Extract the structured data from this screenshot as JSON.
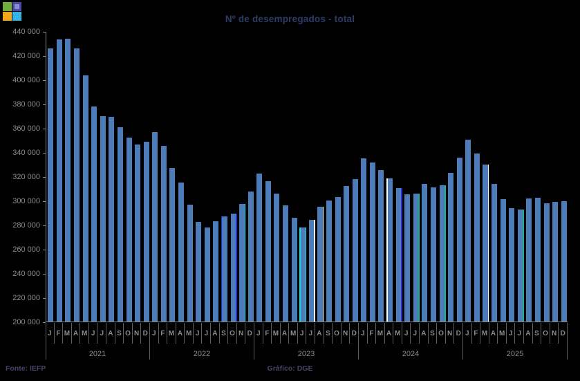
{
  "header": {
    "title": "Nº de desempregados - total",
    "logo_squares": [
      "green",
      "purple",
      "orange",
      "cyan"
    ]
  },
  "footer": {
    "source": "Fonte: IEFP",
    "credit": "Gráfico: DGE"
  },
  "colors": {
    "background": "#000000",
    "bar": "#4e7cb8",
    "axis": "#8a8a8a",
    "separator": "#5f5f5f",
    "tick_label": "#8c8c8c",
    "title": "#2e3d66",
    "footer_text": "#45456b",
    "stripe_blue": "#2433d6",
    "stripe_cyan": "#00e1e8",
    "stripe_white": "#ffffff",
    "stripe_teal": "#19b394"
  },
  "chart_data": {
    "type": "bar",
    "title": "Nº de desempregados - total",
    "xlabel": "",
    "ylabel": "",
    "ylim": [
      200000,
      440000
    ],
    "y_tick_step": 20000,
    "y_tick_values": [
      200000,
      220000,
      240000,
      260000,
      280000,
      300000,
      320000,
      340000,
      360000,
      380000,
      400000,
      420000,
      440000
    ],
    "y_tick_labels": [
      "200 000",
      "220 000",
      "240 000",
      "260 000",
      "280 000",
      "300 000",
      "320 000",
      "340 000",
      "360 000",
      "380 000",
      "400 000",
      "420 000",
      "440 000"
    ],
    "grid": false,
    "legend": false,
    "month_letters": [
      "J",
      "F",
      "M",
      "A",
      "M",
      "J",
      "J",
      "A",
      "S",
      "O",
      "N",
      "D"
    ],
    "series": [
      {
        "year": "2021",
        "values": [
          426000,
          433000,
          434000,
          425500,
          403500,
          377500,
          369500,
          369000,
          360500,
          352000,
          346500,
          348500
        ]
      },
      {
        "year": "2022",
        "values": [
          356500,
          345000,
          327000,
          315000,
          296500,
          282500,
          277500,
          283000,
          287000,
          289000,
          297000,
          307500
        ]
      },
      {
        "year": "2023",
        "values": [
          322500,
          316000,
          306000,
          296000,
          286000,
          278000,
          284000,
          295000,
          300000,
          303000,
          312000,
          317500
        ]
      },
      {
        "year": "2024",
        "values": [
          335000,
          331500,
          325000,
          318500,
          310500,
          305000,
          305500,
          313500,
          311000,
          312500,
          323000,
          335500
        ]
      },
      {
        "year": "2025",
        "values": [
          350500,
          339000,
          330000,
          313500,
          301000,
          294000,
          292500,
          301500,
          302500,
          298000,
          299000,
          299500
        ]
      }
    ],
    "highlight_stripes": [
      {
        "year": "2022",
        "month_index": 8,
        "side": "left",
        "color": "#2433d6"
      },
      {
        "year": "2022",
        "month_index": 9,
        "side": "right",
        "color": "#2433d6"
      },
      {
        "year": "2022",
        "month_index": 10,
        "side": "right",
        "color": "#00e1e8"
      },
      {
        "year": "2023",
        "month_index": 5,
        "side": "left",
        "color": "#00e1e8"
      },
      {
        "year": "2023",
        "month_index": 5,
        "side": "right",
        "color": "#00e1e8"
      },
      {
        "year": "2023",
        "month_index": 6,
        "side": "right",
        "color": "#ffffff"
      },
      {
        "year": "2023",
        "month_index": 7,
        "side": "right",
        "color": "#ffffff"
      },
      {
        "year": "2024",
        "month_index": 3,
        "side": "left",
        "color": "#ffffff"
      },
      {
        "year": "2024",
        "month_index": 4,
        "side": "right",
        "color": "#2433d6"
      },
      {
        "year": "2024",
        "month_index": 6,
        "side": "right",
        "color": "#19b394"
      },
      {
        "year": "2024",
        "month_index": 9,
        "side": "right",
        "color": "#19b394"
      },
      {
        "year": "2025",
        "month_index": 2,
        "side": "right",
        "color": "#ffffff"
      },
      {
        "year": "2025",
        "month_index": 6,
        "side": "right",
        "color": "#19b394"
      }
    ]
  }
}
